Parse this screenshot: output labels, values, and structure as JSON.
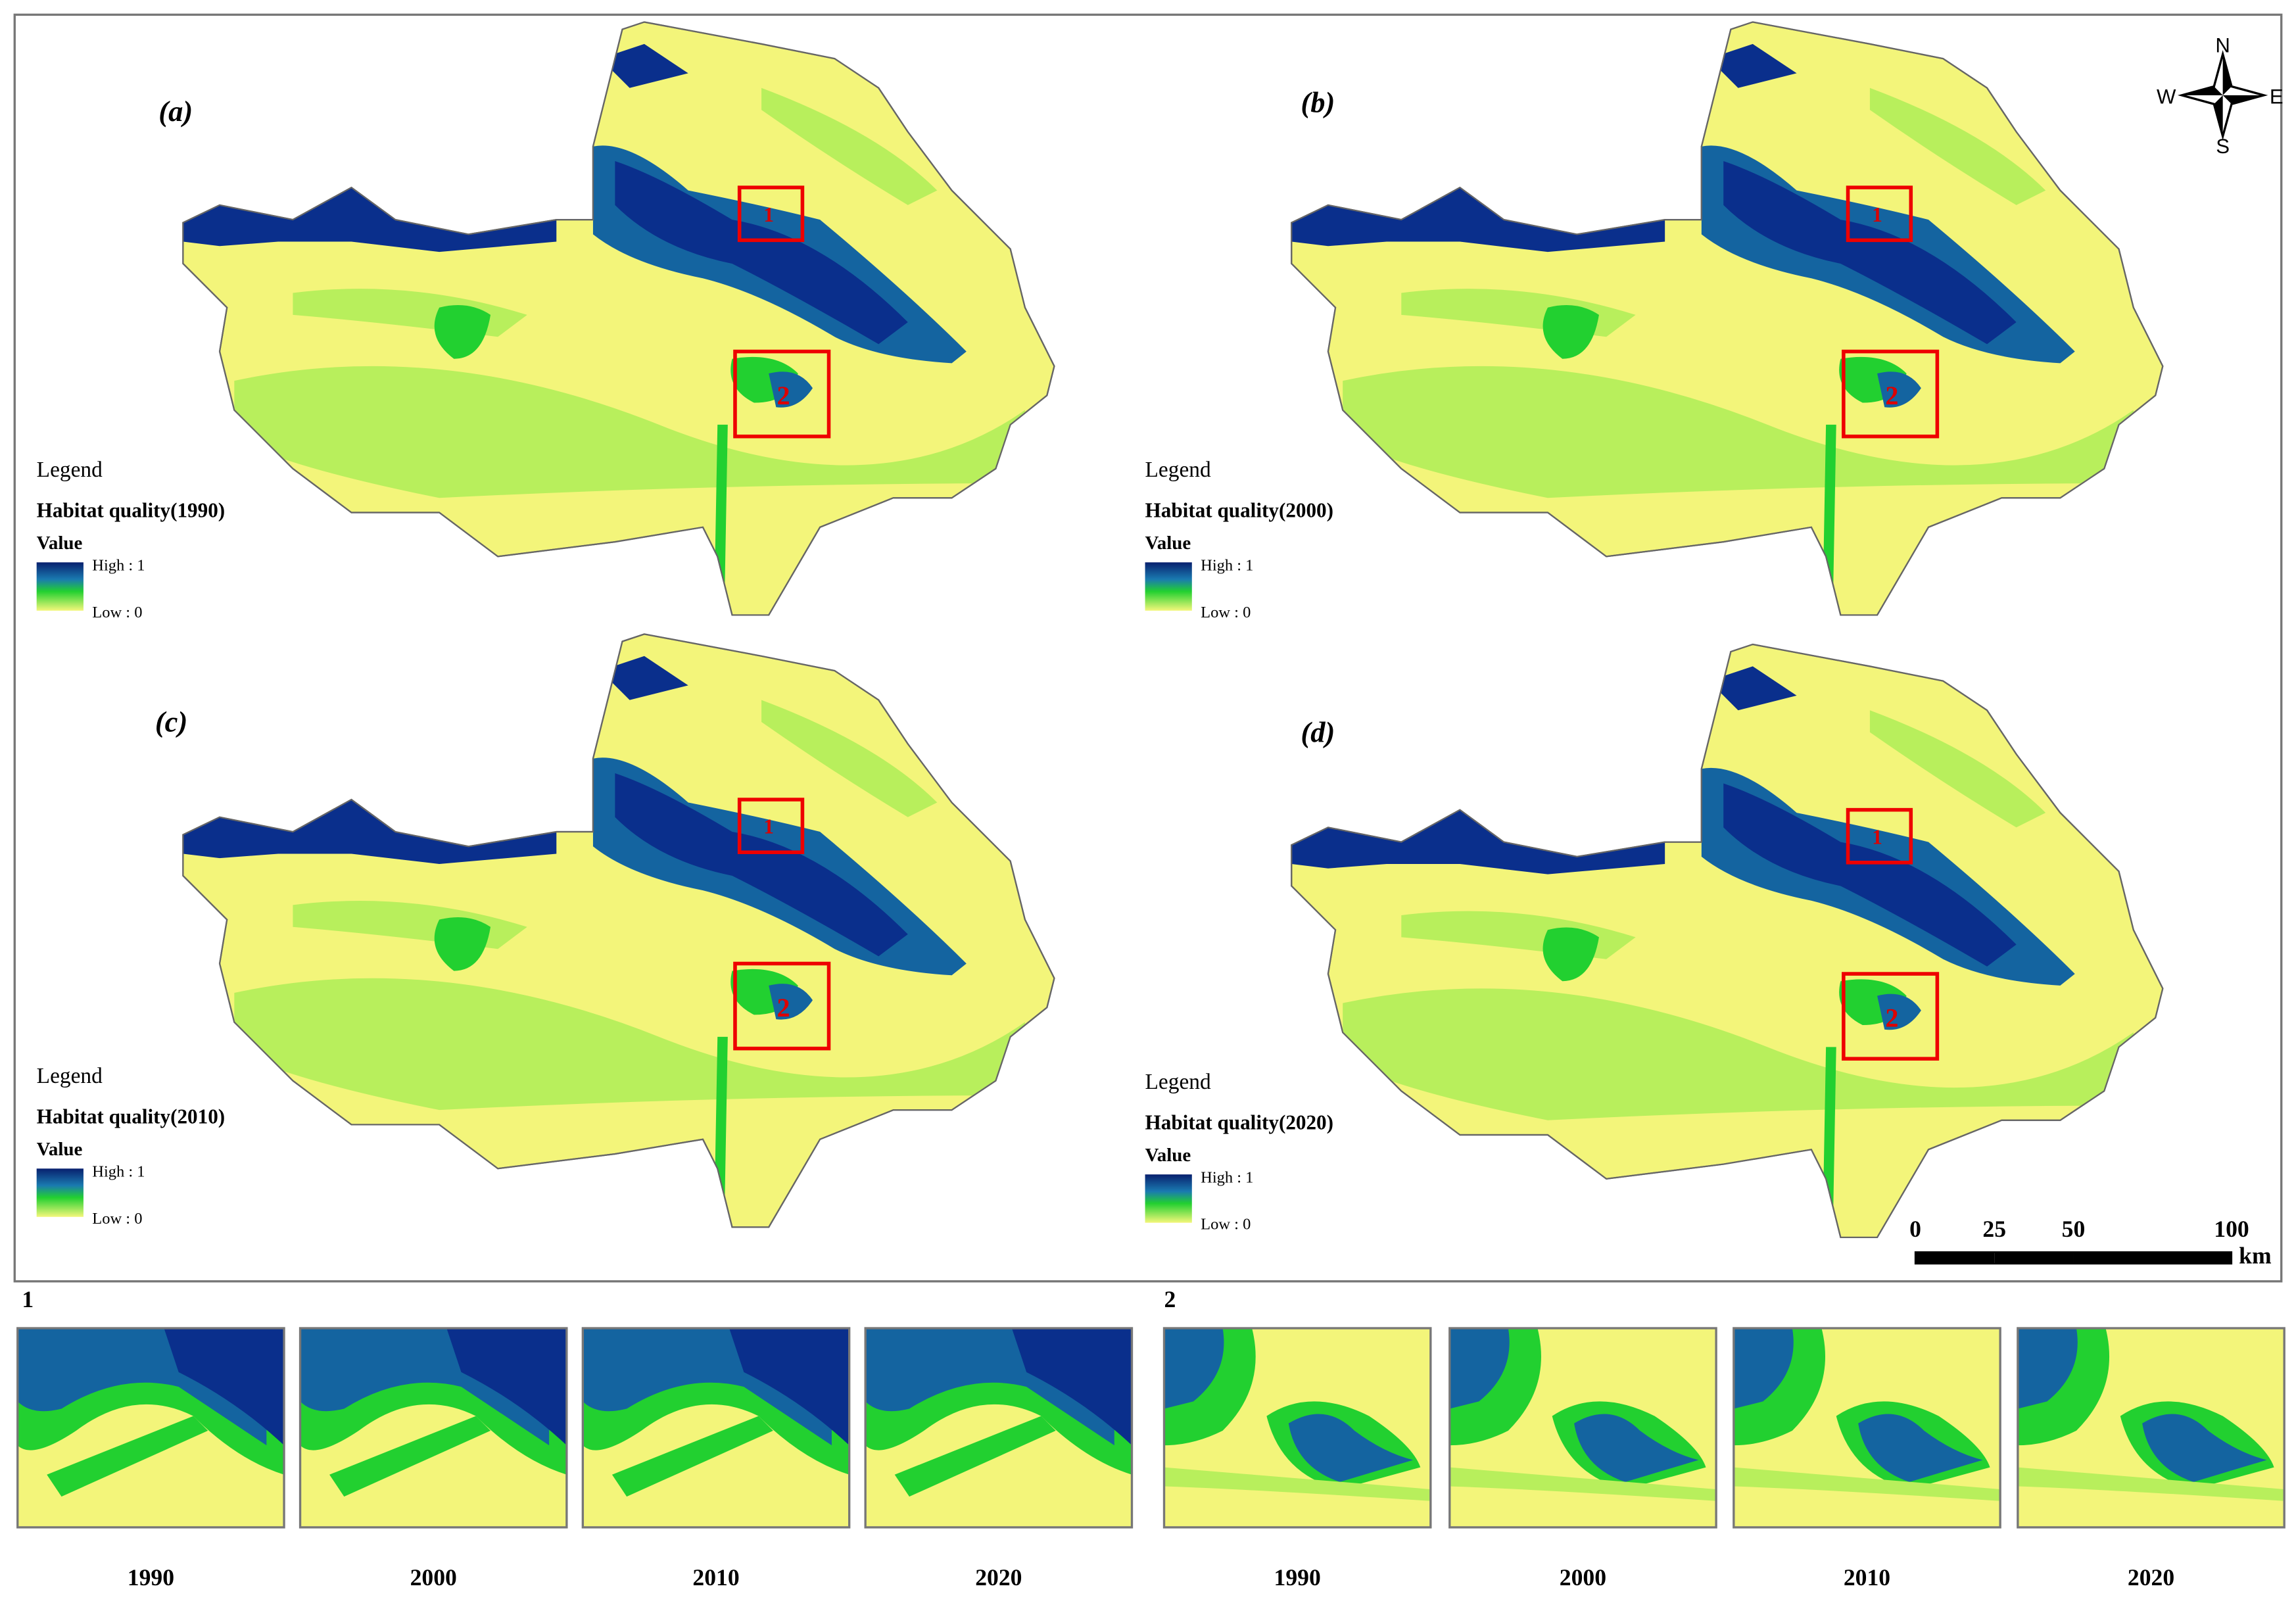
{
  "panels": [
    {
      "label": "(a)",
      "legend": {
        "heading": "Legend",
        "title": "Habitat quality(1990)",
        "field": "Value",
        "high": "High : 1",
        "low": "Low : 0"
      }
    },
    {
      "label": "(b)",
      "legend": {
        "heading": "Legend",
        "title": "Habitat quality(2000)",
        "field": "Value",
        "high": "High : 1",
        "low": "Low : 0"
      }
    },
    {
      "label": "(c)",
      "legend": {
        "heading": "Legend",
        "title": "Habitat quality(2010)",
        "field": "Value",
        "high": "High : 1",
        "low": "Low : 0"
      }
    },
    {
      "label": "(d)",
      "legend": {
        "heading": "Legend",
        "title": "Habitat quality(2020)",
        "field": "Value",
        "high": "High : 1",
        "low": "Low : 0"
      }
    }
  ],
  "box_labels": [
    "1",
    "2"
  ],
  "compass": {
    "n": "N",
    "s": "S",
    "e": "E",
    "w": "W"
  },
  "scale_bar": {
    "ticks": [
      0,
      25,
      50,
      100
    ],
    "unit": "km"
  },
  "insets": [
    {
      "label": "1",
      "years": [
        "1990",
        "2000",
        "2010",
        "2020"
      ]
    },
    {
      "label": "2",
      "years": [
        "1990",
        "2000",
        "2010",
        "2020"
      ]
    }
  ]
}
